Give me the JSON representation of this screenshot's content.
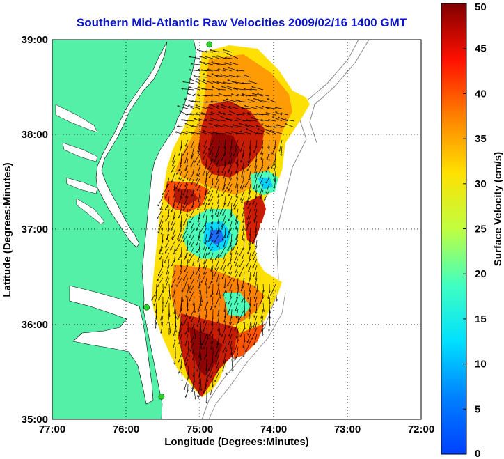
{
  "chart_data": {
    "type": "heatmap",
    "title": "Southern Mid-Atlantic Raw Velocities 2009/02/16 1400 GMT",
    "xlabel": "Longitude (Degrees:Minutes)",
    "ylabel": "Latitude (Degrees:Minutes)",
    "x_ticks": [
      "77:00",
      "76:00",
      "75:00",
      "74:00",
      "73:00",
      "72:00"
    ],
    "y_ticks": [
      "39:00",
      "38:00",
      "37:00",
      "36:00",
      "35:00"
    ],
    "xlim": [
      -77,
      -72
    ],
    "ylim": [
      35,
      39
    ],
    "grid": true,
    "colorbar": {
      "label": "Surface Velocity (cm/s)",
      "range": [
        0,
        50
      ],
      "ticks": [
        "0",
        "5",
        "10",
        "15",
        "20",
        "25",
        "30",
        "35",
        "40",
        "45",
        "50"
      ],
      "colormap": "jet"
    },
    "stations": [
      {
        "lon": -74.87,
        "lat": 38.95
      },
      {
        "lon": -75.72,
        "lat": 36.18
      },
      {
        "lon": -75.52,
        "lat": 35.24
      }
    ]
  },
  "colors": {
    "title": "#0a14c8",
    "land": "#55f0a8",
    "station": "#2bd22b"
  }
}
